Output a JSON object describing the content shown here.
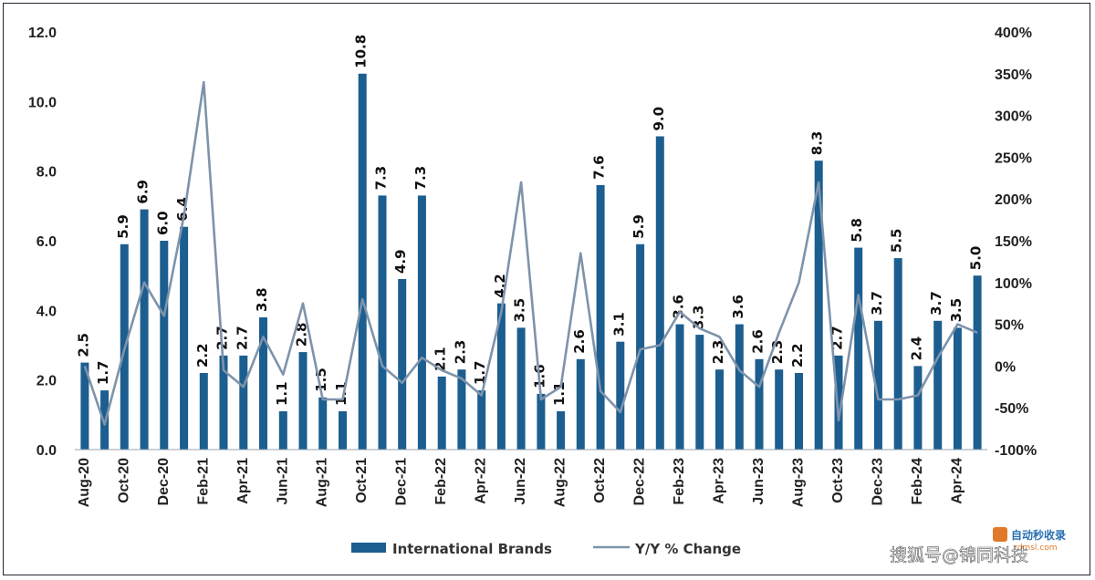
{
  "chart_data": {
    "type": "bar+line",
    "categories": [
      "Aug-20",
      "Sep-20",
      "Oct-20",
      "Nov-20",
      "Dec-20",
      "Jan-21",
      "Feb-21",
      "Mar-21",
      "Apr-21",
      "May-21",
      "Jun-21",
      "Jul-21",
      "Aug-21",
      "Sep-21",
      "Oct-21",
      "Nov-21",
      "Dec-21",
      "Jan-22",
      "Feb-22",
      "Mar-22",
      "Apr-22",
      "May-22",
      "Jun-22",
      "Jul-22",
      "Aug-22",
      "Sep-22",
      "Oct-22",
      "Nov-22",
      "Dec-22",
      "Jan-23",
      "Feb-23",
      "Mar-23",
      "Apr-23",
      "May-23",
      "Jun-23",
      "Jul-23",
      "Aug-23",
      "Sep-23",
      "Oct-23",
      "Nov-23",
      "Dec-23",
      "Jan-24",
      "Feb-24",
      "Mar-24",
      "Apr-24",
      "May-24"
    ],
    "x_tick_labels": [
      "Aug-20",
      "Oct-20",
      "Dec-20",
      "Feb-21",
      "Apr-21",
      "Jun-21",
      "Aug-21",
      "Oct-21",
      "Dec-21",
      "Feb-22",
      "Apr-22",
      "Jun-22",
      "Aug-22",
      "Oct-22",
      "Dec-22",
      "Feb-23",
      "Apr-23",
      "Jun-23",
      "Aug-23",
      "Oct-23",
      "Dec-23",
      "Feb-24",
      "Apr-24"
    ],
    "series": [
      {
        "name": "International Brands",
        "kind": "bar",
        "axis": "left",
        "color": "#1b5e8f",
        "values": [
          2.5,
          1.7,
          5.9,
          6.9,
          6.0,
          6.4,
          2.2,
          2.7,
          2.7,
          3.8,
          1.1,
          2.8,
          1.5,
          1.1,
          10.8,
          7.3,
          4.9,
          7.3,
          2.1,
          2.3,
          1.7,
          4.2,
          3.5,
          1.6,
          1.1,
          2.6,
          7.6,
          3.1,
          5.9,
          9.0,
          3.6,
          3.3,
          2.3,
          3.6,
          2.6,
          2.3,
          2.2,
          8.3,
          2.7,
          5.8,
          3.7,
          5.5,
          2.4,
          3.7,
          3.5,
          5.0
        ],
        "labels": [
          "2.5",
          "1.7",
          "5.9",
          "6.9",
          "6.0",
          "6.4",
          "2.2",
          "2.7",
          "2.7",
          "3.8",
          "1.1",
          "2.8",
          "1.5",
          "1.1",
          "10.8",
          "7.3",
          "4.9",
          "7.3",
          "2.1",
          "2.3",
          "1.7",
          "4.2",
          "3.5",
          "1.6",
          "1.1",
          "2.6",
          "7.6",
          "3.1",
          "5.9",
          "9.0",
          "3.6",
          "3.3",
          "2.3",
          "3.6",
          "2.6",
          "2.3",
          "2.2",
          "8.3",
          "2.7",
          "5.8",
          "3.7",
          "5.5",
          "2.4",
          "3.7",
          "3.5",
          "5.0"
        ]
      },
      {
        "name": "Y/Y % Change",
        "kind": "line",
        "axis": "right",
        "color": "#7e93ab",
        "values": [
          0,
          -70,
          20,
          100,
          60,
          180,
          340,
          -5,
          -25,
          35,
          -10,
          75,
          -40,
          -40,
          80,
          0,
          -20,
          10,
          -5,
          -15,
          -35,
          65,
          220,
          -40,
          -25,
          135,
          -30,
          -55,
          20,
          25,
          65,
          45,
          35,
          -5,
          -25,
          40,
          100,
          220,
          -65,
          85,
          -40,
          -40,
          -35,
          10,
          50,
          40
        ]
      }
    ],
    "left_axis": {
      "min": 0,
      "max": 12,
      "ticks": [
        "0.0",
        "2.0",
        "4.0",
        "6.0",
        "8.0",
        "10.0",
        "12.0"
      ]
    },
    "right_axis": {
      "min": -100,
      "max": 400,
      "ticks": [
        "-100%",
        "-50%",
        "0%",
        "50%",
        "100%",
        "150%",
        "200%",
        "250%",
        "300%",
        "350%",
        "400%"
      ]
    },
    "legend": {
      "placement": "bottom-center",
      "entries": [
        "International Brands",
        "Y/Y % Change"
      ]
    }
  },
  "watermark": {
    "text": "搜狐号@锦同科技",
    "logo_text": "自动秒收录",
    "logo_url": "zdmsl.com"
  }
}
